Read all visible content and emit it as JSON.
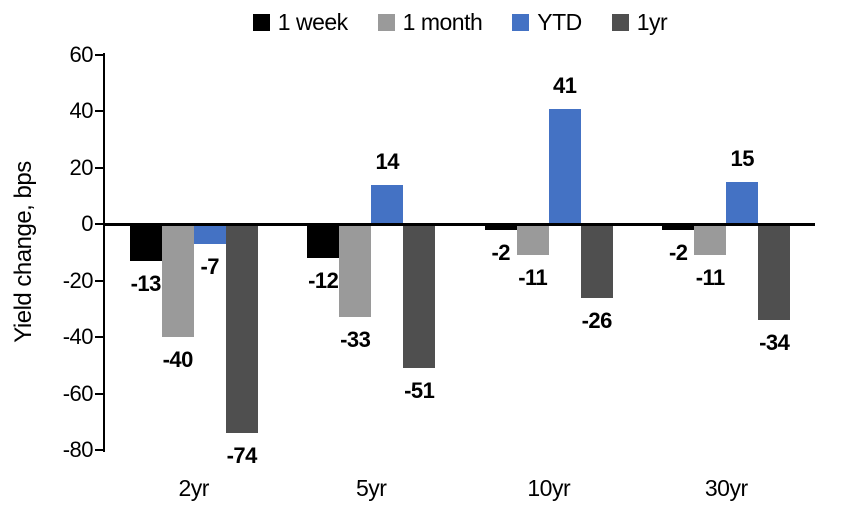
{
  "chart_data": {
    "type": "bar",
    "title": "",
    "xlabel": "",
    "ylabel": "Yield change, bps",
    "categories": [
      "2yr",
      "5yr",
      "10yr",
      "30yr"
    ],
    "series": [
      {
        "name": "1 week",
        "color": "#000000",
        "values": [
          -13,
          -12,
          -2,
          -2
        ]
      },
      {
        "name": "1 month",
        "color": "#9A9A9A",
        "values": [
          -40,
          -33,
          -11,
          -11
        ]
      },
      {
        "name": "YTD",
        "color": "#4472C4",
        "values": [
          -7,
          14,
          41,
          15
        ]
      },
      {
        "name": "1yr",
        "color": "#4F4F4F",
        "values": [
          -74,
          -51,
          -26,
          -34
        ]
      }
    ],
    "ylim": [
      -80,
      60
    ],
    "yticks": [
      60,
      40,
      20,
      0,
      -20,
      -40,
      -60,
      -80
    ],
    "grid": false,
    "legend_position": "top",
    "data_labels": true,
    "axis_color": "#000000",
    "background_color": "#FFFFFF"
  }
}
